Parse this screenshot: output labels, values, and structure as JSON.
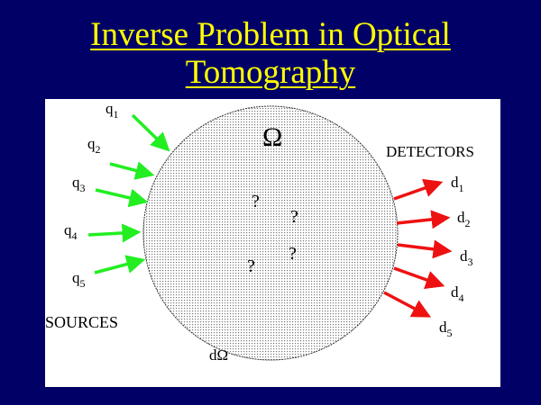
{
  "title": {
    "line1": "Inverse Problem in Optical",
    "line2": "Tomography"
  },
  "diagram": {
    "domain_label": "Ω",
    "boundary_label": "dΩ",
    "unknown_mark": "?",
    "sources_label": "SOURCES",
    "detectors_label": "DETECTORS",
    "sources": [
      {
        "base": "q",
        "sub": "1"
      },
      {
        "base": "q",
        "sub": "2"
      },
      {
        "base": "q",
        "sub": "3"
      },
      {
        "base": "q",
        "sub": "4"
      },
      {
        "base": "q",
        "sub": "5"
      }
    ],
    "detectors": [
      {
        "base": "d",
        "sub": "1"
      },
      {
        "base": "d",
        "sub": "2"
      },
      {
        "base": "d",
        "sub": "3"
      },
      {
        "base": "d",
        "sub": "4"
      },
      {
        "base": "d",
        "sub": "5"
      }
    ],
    "colors": {
      "background": "#000066",
      "title": "#ffff00",
      "source_arrow": "#22ee22",
      "detector_arrow": "#ee1111"
    }
  }
}
